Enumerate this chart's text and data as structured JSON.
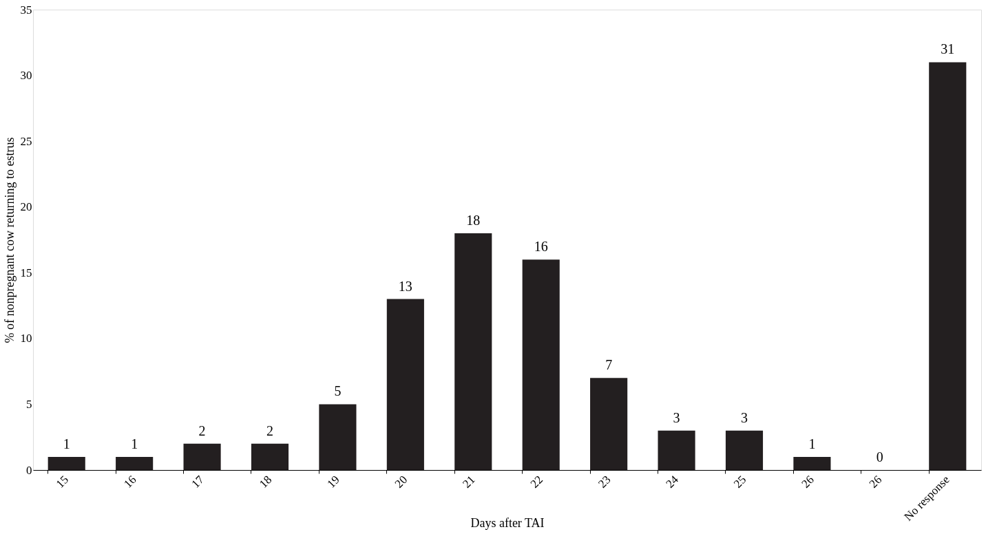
{
  "chart_data": {
    "type": "bar",
    "categories": [
      "15",
      "16",
      "17",
      "18",
      "19",
      "20",
      "21",
      "22",
      "23",
      "24",
      "25",
      "26",
      "26",
      "No response"
    ],
    "values": [
      1,
      1,
      2,
      2,
      5,
      13,
      18,
      16,
      7,
      3,
      3,
      1,
      0,
      31
    ],
    "color": "#231f20",
    "xlabel": "Days after TAI",
    "ylabel": "% of nonpregnant cow returning to estrus",
    "ylim": [
      0,
      35
    ],
    "yticks": [
      0,
      5,
      10,
      15,
      20,
      25,
      30,
      35
    ],
    "data_labels": true,
    "grid": false
  }
}
